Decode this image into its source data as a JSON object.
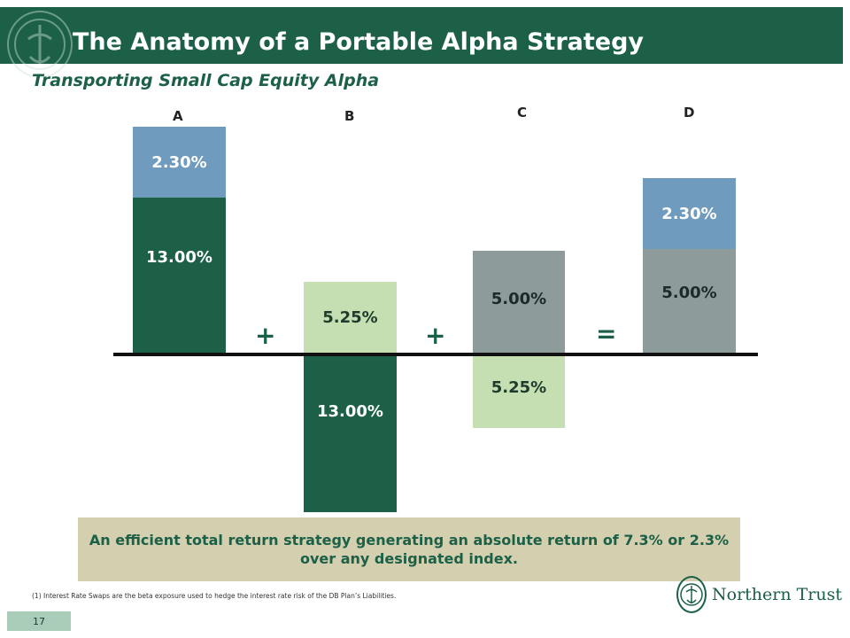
{
  "header": {
    "title": "The Anatomy of a Portable Alpha Strategy",
    "subtitle": "Transporting Small Cap Equity Alpha"
  },
  "columns": [
    {
      "letter": "A",
      "segments": [
        {
          "label": "2.30%",
          "color": "#6f9bbf"
        },
        {
          "label": "13.00%",
          "color": "#1b6047"
        }
      ]
    },
    {
      "letter": "B",
      "segments": [
        {
          "label": "5.25%",
          "color": "#c5deb2"
        },
        {
          "label": "13.00%",
          "color": "#1b6047"
        }
      ]
    },
    {
      "letter": "C",
      "segments": [
        {
          "label": "5.00%",
          "color": "#8d9c9a"
        },
        {
          "label": "5.25%",
          "color": "#c5deb2"
        }
      ]
    },
    {
      "letter": "D",
      "segments": [
        {
          "label": "2.30%",
          "color": "#6f9bbf"
        },
        {
          "label": "5.00%",
          "color": "#8d9c9a"
        }
      ]
    }
  ],
  "operators": {
    "plus1": "+",
    "plus2": "+",
    "equals": "="
  },
  "callout": "An efficient total return strategy generating an absolute return of 7.3% or 2.3% over any designated index.",
  "footnote": "(1) Interest Rate Swaps are the beta exposure used to hedge the interest rate risk of the DB Plan’s Liabilities.",
  "page_number": "17",
  "brand": {
    "name": "Northern Trust",
    "primary_color": "#1b6047"
  }
}
